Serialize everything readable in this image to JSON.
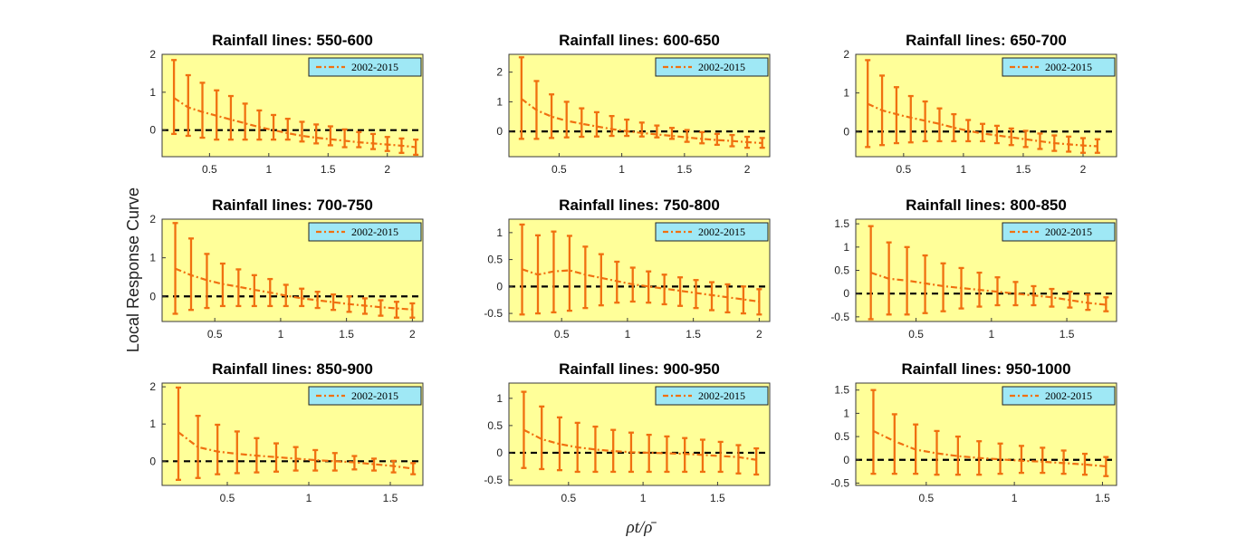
{
  "figure": {
    "ylabel": "Local Response Curve",
    "xlabel": "ρt/ρ̄",
    "legend_label": "2002-2015",
    "colors": {
      "plot_bg": "#ffff99",
      "series": "#f07010",
      "zero_line": "#000000",
      "legend_bg": "#9fe8f5"
    }
  },
  "chart_data": [
    {
      "type": "line",
      "title": "Rainfall lines: 550-600",
      "series_name": "2002-2015",
      "x": [
        0.2,
        0.32,
        0.44,
        0.56,
        0.68,
        0.8,
        0.92,
        1.04,
        1.16,
        1.28,
        1.4,
        1.52,
        1.64,
        1.76,
        1.88,
        2.0,
        2.12,
        2.24
      ],
      "y": [
        0.85,
        0.6,
        0.48,
        0.38,
        0.28,
        0.18,
        0.08,
        0.0,
        -0.08,
        -0.15,
        -0.2,
        -0.24,
        -0.28,
        -0.32,
        -0.35,
        -0.38,
        -0.41,
        -0.45
      ],
      "lower": [
        -0.1,
        -0.15,
        -0.2,
        -0.25,
        -0.25,
        -0.25,
        -0.25,
        -0.25,
        -0.25,
        -0.3,
        -0.35,
        -0.4,
        -0.45,
        -0.45,
        -0.5,
        -0.55,
        -0.6,
        -0.65
      ],
      "upper": [
        1.85,
        1.45,
        1.25,
        1.05,
        0.9,
        0.7,
        0.52,
        0.4,
        0.3,
        0.22,
        0.15,
        0.1,
        0.02,
        -0.05,
        -0.1,
        -0.18,
        -0.22,
        -0.25
      ],
      "xlim": [
        0.1,
        2.3
      ],
      "ylim": [
        -0.7,
        2.0
      ],
      "xticks": [
        0.5,
        1,
        1.5,
        2
      ],
      "xtick_labels": [
        "0.5",
        "1",
        "1.5",
        "2"
      ],
      "yticks": [
        0,
        1,
        2
      ],
      "ytick_labels": [
        "0",
        "1",
        "2"
      ]
    },
    {
      "type": "line",
      "title": "Rainfall lines: 600-650",
      "series_name": "2002-2015",
      "x": [
        0.2,
        0.32,
        0.44,
        0.56,
        0.68,
        0.8,
        0.92,
        1.04,
        1.16,
        1.28,
        1.4,
        1.52,
        1.64,
        1.76,
        1.88,
        2.0,
        2.12
      ],
      "y": [
        1.1,
        0.72,
        0.5,
        0.36,
        0.26,
        0.17,
        0.08,
        0.01,
        -0.05,
        -0.1,
        -0.15,
        -0.2,
        -0.25,
        -0.29,
        -0.32,
        -0.36,
        -0.39
      ],
      "lower": [
        -0.25,
        -0.25,
        -0.22,
        -0.2,
        -0.18,
        -0.17,
        -0.15,
        -0.15,
        -0.17,
        -0.2,
        -0.25,
        -0.35,
        -0.4,
        -0.45,
        -0.5,
        -0.55,
        -0.55
      ],
      "upper": [
        2.5,
        1.7,
        1.25,
        1.0,
        0.78,
        0.65,
        0.52,
        0.4,
        0.3,
        0.2,
        0.12,
        0.05,
        -0.02,
        -0.08,
        -0.12,
        -0.18,
        -0.22
      ],
      "xlim": [
        0.1,
        2.18
      ],
      "ylim": [
        -0.85,
        2.6
      ],
      "xticks": [
        0.5,
        1,
        1.5,
        2
      ],
      "xtick_labels": [
        "0.5",
        "1",
        "1.5",
        "2"
      ],
      "yticks": [
        0,
        1,
        2
      ],
      "ytick_labels": [
        "0",
        "1",
        "2"
      ]
    },
    {
      "type": "line",
      "title": "Rainfall lines: 650-700",
      "series_name": "2002-2015",
      "x": [
        0.2,
        0.32,
        0.44,
        0.56,
        0.68,
        0.8,
        0.92,
        1.04,
        1.16,
        1.28,
        1.4,
        1.52,
        1.64,
        1.76,
        1.88,
        2.0,
        2.12
      ],
      "y": [
        0.72,
        0.55,
        0.45,
        0.36,
        0.28,
        0.2,
        0.1,
        0.02,
        -0.05,
        -0.1,
        -0.15,
        -0.2,
        -0.25,
        -0.3,
        -0.33,
        -0.36,
        -0.38
      ],
      "lower": [
        -0.4,
        -0.35,
        -0.3,
        -0.28,
        -0.25,
        -0.25,
        -0.25,
        -0.25,
        -0.25,
        -0.3,
        -0.35,
        -0.4,
        -0.45,
        -0.5,
        -0.52,
        -0.55,
        -0.55
      ],
      "upper": [
        1.85,
        1.45,
        1.15,
        0.92,
        0.78,
        0.6,
        0.45,
        0.3,
        0.2,
        0.15,
        0.08,
        0.02,
        -0.05,
        -0.1,
        -0.13,
        -0.17,
        -0.2
      ],
      "xlim": [
        0.1,
        2.28
      ],
      "ylim": [
        -0.65,
        2.0
      ],
      "xticks": [
        0.5,
        1,
        1.5,
        2
      ],
      "xtick_labels": [
        "0.5",
        "1",
        "1.5",
        "2"
      ],
      "yticks": [
        0,
        1,
        2
      ],
      "ytick_labels": [
        "0",
        "1",
        "2"
      ]
    },
    {
      "type": "line",
      "title": "Rainfall lines: 700-750",
      "series_name": "2002-2015",
      "x": [
        0.2,
        0.32,
        0.44,
        0.56,
        0.68,
        0.8,
        0.92,
        1.04,
        1.16,
        1.28,
        1.4,
        1.52,
        1.64,
        1.76,
        1.88,
        2.0
      ],
      "y": [
        0.72,
        0.55,
        0.42,
        0.32,
        0.25,
        0.17,
        0.1,
        0.02,
        -0.05,
        -0.1,
        -0.15,
        -0.2,
        -0.24,
        -0.28,
        -0.31,
        -0.34
      ],
      "lower": [
        -0.45,
        -0.35,
        -0.3,
        -0.25,
        -0.25,
        -0.25,
        -0.25,
        -0.25,
        -0.25,
        -0.3,
        -0.35,
        -0.4,
        -0.45,
        -0.5,
        -0.55,
        -0.55
      ],
      "upper": [
        1.9,
        1.5,
        1.1,
        0.85,
        0.7,
        0.55,
        0.45,
        0.3,
        0.2,
        0.12,
        0.05,
        0.0,
        -0.05,
        -0.1,
        -0.14,
        -0.18
      ],
      "xlim": [
        0.1,
        2.08
      ],
      "ylim": [
        -0.65,
        2.0
      ],
      "xticks": [
        0.5,
        1,
        1.5,
        2
      ],
      "xtick_labels": [
        "0.5",
        "1",
        "1.5",
        "2"
      ],
      "yticks": [
        0,
        1,
        2
      ],
      "ytick_labels": [
        "0",
        "1",
        "2"
      ]
    },
    {
      "type": "line",
      "title": "Rainfall lines: 750-800",
      "series_name": "2002-2015",
      "x": [
        0.2,
        0.32,
        0.44,
        0.56,
        0.68,
        0.8,
        0.92,
        1.04,
        1.16,
        1.28,
        1.4,
        1.52,
        1.64,
        1.76,
        1.88,
        2.0
      ],
      "y": [
        0.32,
        0.22,
        0.28,
        0.3,
        0.22,
        0.16,
        0.1,
        0.04,
        0.0,
        -0.04,
        -0.08,
        -0.12,
        -0.16,
        -0.2,
        -0.24,
        -0.28
      ],
      "lower": [
        -0.52,
        -0.5,
        -0.48,
        -0.45,
        -0.4,
        -0.35,
        -0.3,
        -0.28,
        -0.3,
        -0.33,
        -0.36,
        -0.4,
        -0.44,
        -0.48,
        -0.5,
        -0.52
      ],
      "upper": [
        1.15,
        0.95,
        1.02,
        0.94,
        0.74,
        0.6,
        0.46,
        0.35,
        0.28,
        0.22,
        0.17,
        0.12,
        0.08,
        0.04,
        0.0,
        -0.05
      ],
      "xlim": [
        0.1,
        2.08
      ],
      "ylim": [
        -0.65,
        1.25
      ],
      "xticks": [
        0.5,
        1,
        1.5,
        2
      ],
      "xtick_labels": [
        "0.5",
        "1",
        "1.5",
        "2"
      ],
      "yticks": [
        -0.5,
        0,
        0.5,
        1
      ],
      "ytick_labels": [
        "-0.5",
        "0",
        "0.5",
        "1"
      ]
    },
    {
      "type": "line",
      "title": "Rainfall lines: 800-850",
      "series_name": "2002-2015",
      "x": [
        0.2,
        0.32,
        0.44,
        0.56,
        0.68,
        0.8,
        0.92,
        1.04,
        1.16,
        1.28,
        1.4,
        1.52,
        1.64,
        1.76
      ],
      "y": [
        0.45,
        0.32,
        0.28,
        0.22,
        0.16,
        0.12,
        0.08,
        0.04,
        0.0,
        -0.04,
        -0.08,
        -0.14,
        -0.2,
        -0.24
      ],
      "lower": [
        -0.55,
        -0.45,
        -0.45,
        -0.42,
        -0.38,
        -0.32,
        -0.28,
        -0.25,
        -0.25,
        -0.25,
        -0.28,
        -0.3,
        -0.35,
        -0.38
      ],
      "upper": [
        1.45,
        1.1,
        1.0,
        0.82,
        0.65,
        0.55,
        0.45,
        0.35,
        0.25,
        0.16,
        0.1,
        0.04,
        -0.02,
        -0.08
      ],
      "xlim": [
        0.1,
        1.83
      ],
      "ylim": [
        -0.6,
        1.6
      ],
      "xticks": [
        0.5,
        1,
        1.5
      ],
      "xtick_labels": [
        "0.5",
        "1",
        "1.5"
      ],
      "yticks": [
        -0.5,
        0,
        0.5,
        1,
        1.5
      ],
      "ytick_labels": [
        "-0.5",
        "0",
        "0.5",
        "1",
        "1.5"
      ]
    },
    {
      "type": "line",
      "title": "Rainfall lines: 850-900",
      "series_name": "2002-2015",
      "x": [
        0.2,
        0.32,
        0.44,
        0.56,
        0.68,
        0.8,
        0.92,
        1.04,
        1.16,
        1.28,
        1.4,
        1.52,
        1.64
      ],
      "y": [
        0.78,
        0.38,
        0.26,
        0.2,
        0.15,
        0.11,
        0.07,
        0.03,
        0.0,
        -0.03,
        -0.08,
        -0.13,
        -0.2
      ],
      "lower": [
        -0.5,
        -0.45,
        -0.35,
        -0.32,
        -0.3,
        -0.28,
        -0.25,
        -0.25,
        -0.25,
        -0.22,
        -0.25,
        -0.3,
        -0.35
      ],
      "upper": [
        1.98,
        1.22,
        0.98,
        0.8,
        0.62,
        0.48,
        0.38,
        0.3,
        0.22,
        0.14,
        0.07,
        0.01,
        -0.05
      ],
      "xlim": [
        0.1,
        1.7
      ],
      "ylim": [
        -0.65,
        2.1
      ],
      "xticks": [
        0.5,
        1,
        1.5
      ],
      "xtick_labels": [
        "0.5",
        "1",
        "1.5"
      ],
      "yticks": [
        0,
        1,
        2
      ],
      "ytick_labels": [
        "0",
        "1",
        "2"
      ]
    },
    {
      "type": "line",
      "title": "Rainfall lines: 900-950",
      "series_name": "2002-2015",
      "x": [
        0.2,
        0.32,
        0.44,
        0.56,
        0.68,
        0.8,
        0.92,
        1.04,
        1.16,
        1.28,
        1.4,
        1.52,
        1.64,
        1.76
      ],
      "y": [
        0.42,
        0.25,
        0.16,
        0.1,
        0.06,
        0.03,
        0.01,
        0.0,
        -0.01,
        -0.02,
        -0.04,
        -0.06,
        -0.08,
        -0.13
      ],
      "lower": [
        -0.28,
        -0.3,
        -0.32,
        -0.35,
        -0.35,
        -0.35,
        -0.35,
        -0.35,
        -0.35,
        -0.35,
        -0.35,
        -0.35,
        -0.38,
        -0.4
      ],
      "upper": [
        1.12,
        0.85,
        0.65,
        0.55,
        0.48,
        0.42,
        0.37,
        0.33,
        0.3,
        0.27,
        0.24,
        0.2,
        0.14,
        0.08
      ],
      "xlim": [
        0.1,
        1.85
      ],
      "ylim": [
        -0.6,
        1.28
      ],
      "xticks": [
        0.5,
        1,
        1.5
      ],
      "xtick_labels": [
        "0.5",
        "1",
        "1.5"
      ],
      "yticks": [
        -0.5,
        0,
        0.5,
        1
      ],
      "ytick_labels": [
        "-0.5",
        "0",
        "0.5",
        "1"
      ]
    },
    {
      "type": "line",
      "title": "Rainfall lines: 950-1000",
      "series_name": "2002-2015",
      "x": [
        0.2,
        0.32,
        0.44,
        0.56,
        0.68,
        0.8,
        0.92,
        1.04,
        1.16,
        1.28,
        1.4,
        1.52
      ],
      "y": [
        0.62,
        0.4,
        0.22,
        0.14,
        0.08,
        0.04,
        0.01,
        -0.02,
        -0.04,
        -0.07,
        -0.1,
        -0.14
      ],
      "lower": [
        -0.3,
        -0.3,
        -0.3,
        -0.32,
        -0.32,
        -0.32,
        -0.3,
        -0.28,
        -0.28,
        -0.3,
        -0.32,
        -0.35
      ],
      "upper": [
        1.5,
        0.98,
        0.76,
        0.62,
        0.5,
        0.4,
        0.35,
        0.3,
        0.26,
        0.2,
        0.13,
        0.06
      ],
      "xlim": [
        0.1,
        1.58
      ],
      "ylim": [
        -0.55,
        1.65
      ],
      "xticks": [
        0.5,
        1,
        1.5
      ],
      "xtick_labels": [
        "0.5",
        "1",
        "1.5"
      ],
      "yticks": [
        -0.5,
        0,
        0.5,
        1,
        1.5
      ],
      "ytick_labels": [
        "-0.5",
        "0",
        "0.5",
        "1",
        "1.5"
      ]
    }
  ]
}
